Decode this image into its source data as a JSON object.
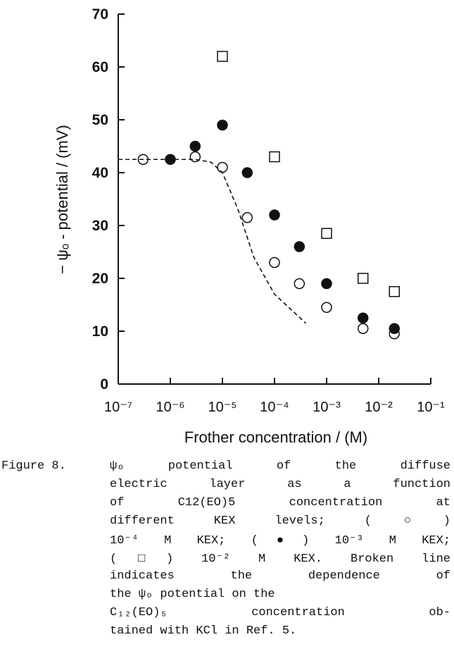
{
  "chart_data": {
    "type": "scatter",
    "x_label": "Frother concentration  /  (M)",
    "y_label": "− ψₒ - potential  /  (mV)",
    "xscale": "log",
    "xlim": [
      1e-07,
      0.1
    ],
    "xticks": [
      {
        "value": 1e-07,
        "label": "10⁻⁷"
      },
      {
        "value": 1e-06,
        "label": "10⁻⁶"
      },
      {
        "value": 1e-05,
        "label": "10⁻⁵"
      },
      {
        "value": 0.0001,
        "label": "10⁻⁴"
      },
      {
        "value": 0.001,
        "label": "10⁻³"
      },
      {
        "value": 0.01,
        "label": "10⁻²"
      },
      {
        "value": 0.1,
        "label": "10⁻¹"
      }
    ],
    "ylim": [
      0,
      70
    ],
    "yticks": [
      0,
      10,
      20,
      30,
      40,
      50,
      60,
      70
    ],
    "series": [
      {
        "marker": "open-circle",
        "color": "#111111",
        "x": [
          3e-07,
          3e-06,
          1e-05,
          3e-05,
          0.0001,
          0.0003,
          0.001,
          0.005,
          0.02
        ],
        "values": [
          42.5,
          43,
          41,
          31.5,
          23,
          19,
          14.5,
          10.5,
          9.5
        ]
      },
      {
        "marker": "filled-circle",
        "color": "#111111",
        "x": [
          1e-06,
          3e-06,
          1e-05,
          3e-05,
          0.0001,
          0.0003,
          0.001,
          0.005,
          0.02
        ],
        "values": [
          42.5,
          45,
          49,
          40,
          32,
          26,
          19,
          12.5,
          10.5
        ]
      },
      {
        "marker": "open-square",
        "color": "#111111",
        "x": [
          1e-05,
          0.0001,
          0.001,
          0.005,
          0.02
        ],
        "values": [
          62,
          43,
          28.5,
          20,
          17.5
        ]
      },
      {
        "marker": "dashed-line",
        "color": "#111111",
        "x": [
          1e-07,
          3e-06,
          6e-06,
          1e-05,
          2e-05,
          4e-05,
          0.0001,
          0.0004
        ],
        "values": [
          42.5,
          42.5,
          42,
          40,
          33,
          24,
          17,
          11.5
        ]
      }
    ]
  },
  "caption": {
    "label": "Figure 8.",
    "lines": [
      "ψₒ potential of the diffuse",
      "electric layer as a function",
      "of C12(EO)5 concentration at",
      "different KEX levels; (○)",
      "10⁻⁴ M KEX; (●) 10⁻³ M KEX;",
      "(□) 10⁻² M KEX. Broken line",
      "indicates the dependence of",
      "the ψₒ potential on the",
      "C₁₂(EO)₅ concentration ob-",
      "tained with KCl in Ref. 5."
    ]
  }
}
